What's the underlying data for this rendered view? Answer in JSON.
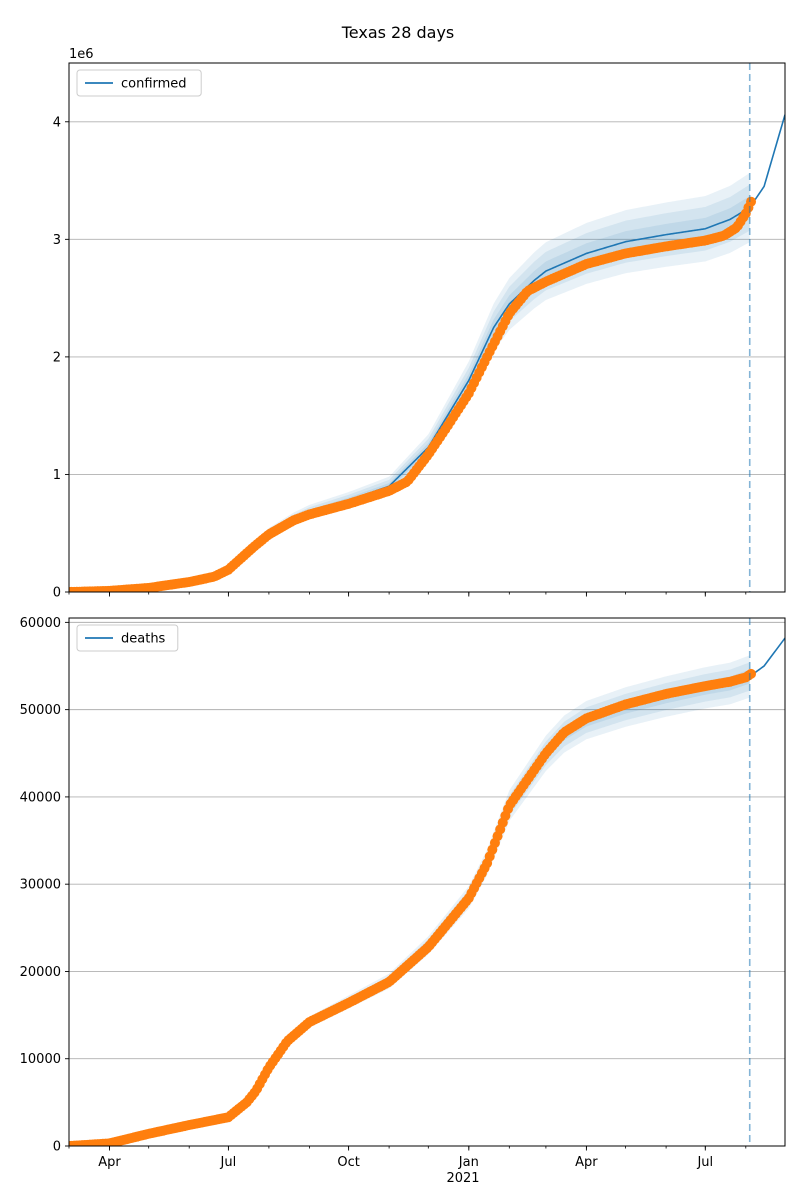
{
  "figure": {
    "title": "Texas 28 days"
  },
  "colors": {
    "model": "#1f77b4",
    "observed": "#ff7f0e",
    "band": "#1f77b4",
    "grid": "#b0b0b0",
    "vline": "#1f77b4"
  },
  "x_axis": {
    "domain": [
      "2020-03-01",
      "2021-08-31"
    ],
    "ticks": [
      {
        "date": "2020-04-01",
        "label": "Apr"
      },
      {
        "date": "2020-07-01",
        "label": "Jul"
      },
      {
        "date": "2020-10-01",
        "label": "Oct"
      },
      {
        "date": "2021-01-01",
        "label": "Jan"
      },
      {
        "date": "2021-04-01",
        "label": "Apr"
      },
      {
        "date": "2021-07-01",
        "label": "Jul"
      }
    ],
    "year_label": "2021",
    "forecast_start": "2021-08-04"
  },
  "chart_data": [
    {
      "type": "line",
      "series_name": "confirmed",
      "legend": "upper left",
      "grid": "y",
      "ylim": [
        0,
        4500000
      ],
      "yticks": [
        0,
        1000000,
        2000000,
        3000000,
        4000000
      ],
      "ytick_labels": [
        "0",
        "1",
        "2",
        "3",
        "4"
      ],
      "offset_label": "1e6",
      "model": {
        "x": [
          "2020-03-01",
          "2020-04-01",
          "2020-05-01",
          "2020-06-01",
          "2020-06-20",
          "2020-07-01",
          "2020-07-20",
          "2020-08-01",
          "2020-08-20",
          "2020-09-01",
          "2020-10-01",
          "2020-11-01",
          "2020-12-01",
          "2021-01-01",
          "2021-01-20",
          "2021-02-01",
          "2021-02-20",
          "2021-03-01",
          "2021-04-01",
          "2021-05-01",
          "2021-06-01",
          "2021-07-01",
          "2021-07-20",
          "2021-08-04",
          "2021-08-15",
          "2021-08-31"
        ],
        "y": [
          0,
          10000,
          35000,
          85000,
          130000,
          200000,
          390000,
          500000,
          620000,
          680000,
          780000,
          900000,
          1230000,
          1800000,
          2250000,
          2450000,
          2650000,
          2730000,
          2880000,
          2980000,
          3040000,
          3090000,
          3170000,
          3270000,
          3450000,
          4060000
        ]
      },
      "band_spread": [
        0.03,
        0.06,
        0.09
      ],
      "observed": {
        "x": [
          "2020-03-01",
          "2020-04-01",
          "2020-05-01",
          "2020-06-01",
          "2020-06-20",
          "2020-07-01",
          "2020-07-20",
          "2020-08-01",
          "2020-08-20",
          "2020-09-01",
          "2020-10-01",
          "2020-11-01",
          "2020-11-15",
          "2020-12-01",
          "2020-12-15",
          "2021-01-01",
          "2021-01-15",
          "2021-02-01",
          "2021-02-15",
          "2021-03-01",
          "2021-04-01",
          "2021-05-01",
          "2021-06-01",
          "2021-07-01",
          "2021-07-15",
          "2021-07-25",
          "2021-08-01",
          "2021-08-05"
        ],
        "y": [
          0,
          10000,
          35000,
          85000,
          130000,
          190000,
          380000,
          490000,
          610000,
          660000,
          750000,
          860000,
          940000,
          1170000,
          1400000,
          1690000,
          2000000,
          2370000,
          2560000,
          2640000,
          2790000,
          2880000,
          2940000,
          2990000,
          3030000,
          3100000,
          3220000,
          3320000
        ]
      }
    },
    {
      "type": "line",
      "series_name": "deaths",
      "legend": "upper left",
      "grid": "y",
      "ylim": [
        0,
        60500
      ],
      "yticks": [
        0,
        10000,
        20000,
        30000,
        40000,
        50000,
        60000
      ],
      "ytick_labels": [
        "0",
        "10000",
        "20000",
        "30000",
        "40000",
        "50000",
        "60000"
      ],
      "offset_label": "",
      "model": {
        "x": [
          "2020-03-01",
          "2020-04-01",
          "2020-05-01",
          "2020-06-01",
          "2020-07-01",
          "2020-07-15",
          "2020-08-01",
          "2020-08-15",
          "2020-09-01",
          "2020-10-01",
          "2020-11-01",
          "2020-12-01",
          "2021-01-01",
          "2021-01-15",
          "2021-02-01",
          "2021-02-15",
          "2021-03-01",
          "2021-03-15",
          "2021-04-01",
          "2021-05-01",
          "2021-06-01",
          "2021-07-01",
          "2021-07-20",
          "2021-08-04",
          "2021-08-15",
          "2021-08-31"
        ],
        "y": [
          0,
          300,
          1400,
          2400,
          3400,
          5200,
          9000,
          12000,
          14200,
          16500,
          18900,
          23000,
          28500,
          32500,
          39000,
          42000,
          45000,
          47200,
          48800,
          50300,
          51500,
          52500,
          53000,
          53800,
          55000,
          58200
        ]
      },
      "band_spread": [
        0.015,
        0.03,
        0.045
      ],
      "observed": {
        "x": [
          "2020-03-01",
          "2020-04-01",
          "2020-05-01",
          "2020-06-01",
          "2020-07-01",
          "2020-07-15",
          "2020-07-22",
          "2020-08-01",
          "2020-08-15",
          "2020-09-01",
          "2020-10-01",
          "2020-11-01",
          "2020-12-01",
          "2021-01-01",
          "2021-01-15",
          "2021-02-01",
          "2021-02-15",
          "2021-03-01",
          "2021-03-15",
          "2021-04-01",
          "2021-05-01",
          "2021-06-01",
          "2021-07-01",
          "2021-07-20",
          "2021-08-01",
          "2021-08-05"
        ],
        "y": [
          0,
          300,
          1400,
          2400,
          3300,
          5000,
          6300,
          9000,
          12000,
          14200,
          16400,
          18800,
          22800,
          28400,
          32400,
          39000,
          42000,
          45000,
          47400,
          49000,
          50600,
          51800,
          52700,
          53200,
          53700,
          54100
        ]
      }
    }
  ]
}
